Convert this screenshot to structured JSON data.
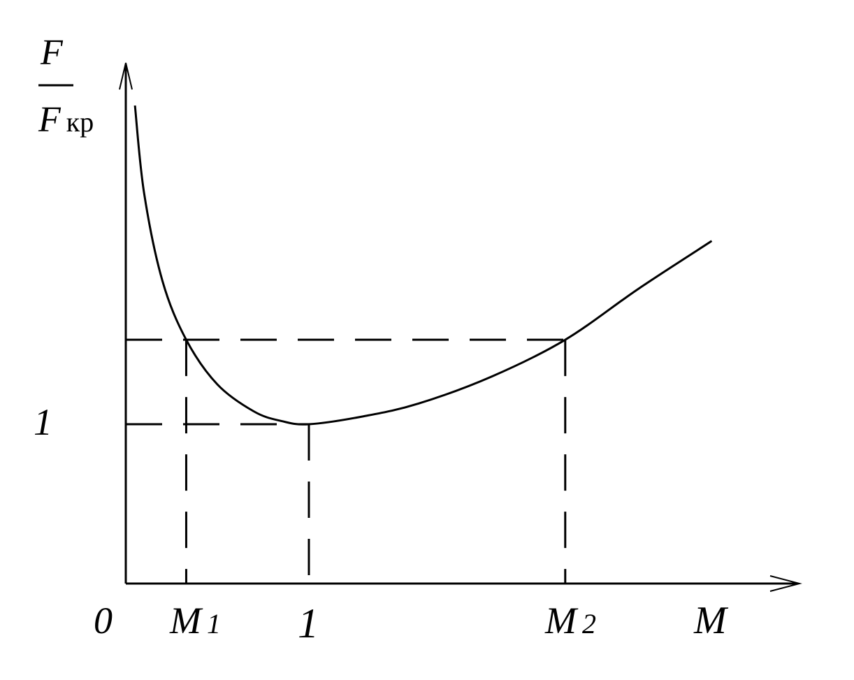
{
  "chart_data": {
    "type": "line",
    "ylabel_numerator": "F",
    "ylabel_denominator": "F",
    "ylabel_subscript": "кр",
    "xlabel": "M",
    "origin_label": "0",
    "y_tick_label": "1",
    "x_tick_labels": {
      "m1_main": "M",
      "m1_sub": "1",
      "one": "1",
      "m2_main": "M",
      "m2_sub": "2"
    },
    "special_points": {
      "M1": 0.33,
      "M_critical": 1.0,
      "M2": 2.4,
      "area_ratio_at_M1_M2": 1.53
    },
    "series": [
      {
        "x": [
          0.05,
          0.1,
          0.2,
          0.33,
          0.5,
          0.7,
          0.85,
          1.0,
          1.3,
          1.6,
          2.0,
          2.4,
          2.8,
          3.2
        ],
        "y": [
          3.0,
          2.45,
          1.9,
          1.53,
          1.25,
          1.08,
          1.02,
          1.0,
          1.05,
          1.13,
          1.3,
          1.53,
          1.85,
          2.15
        ]
      }
    ],
    "xlim": [
      0,
      3.9
    ],
    "ylim": [
      0,
      3.3
    ],
    "grid": false,
    "legend": "none"
  }
}
